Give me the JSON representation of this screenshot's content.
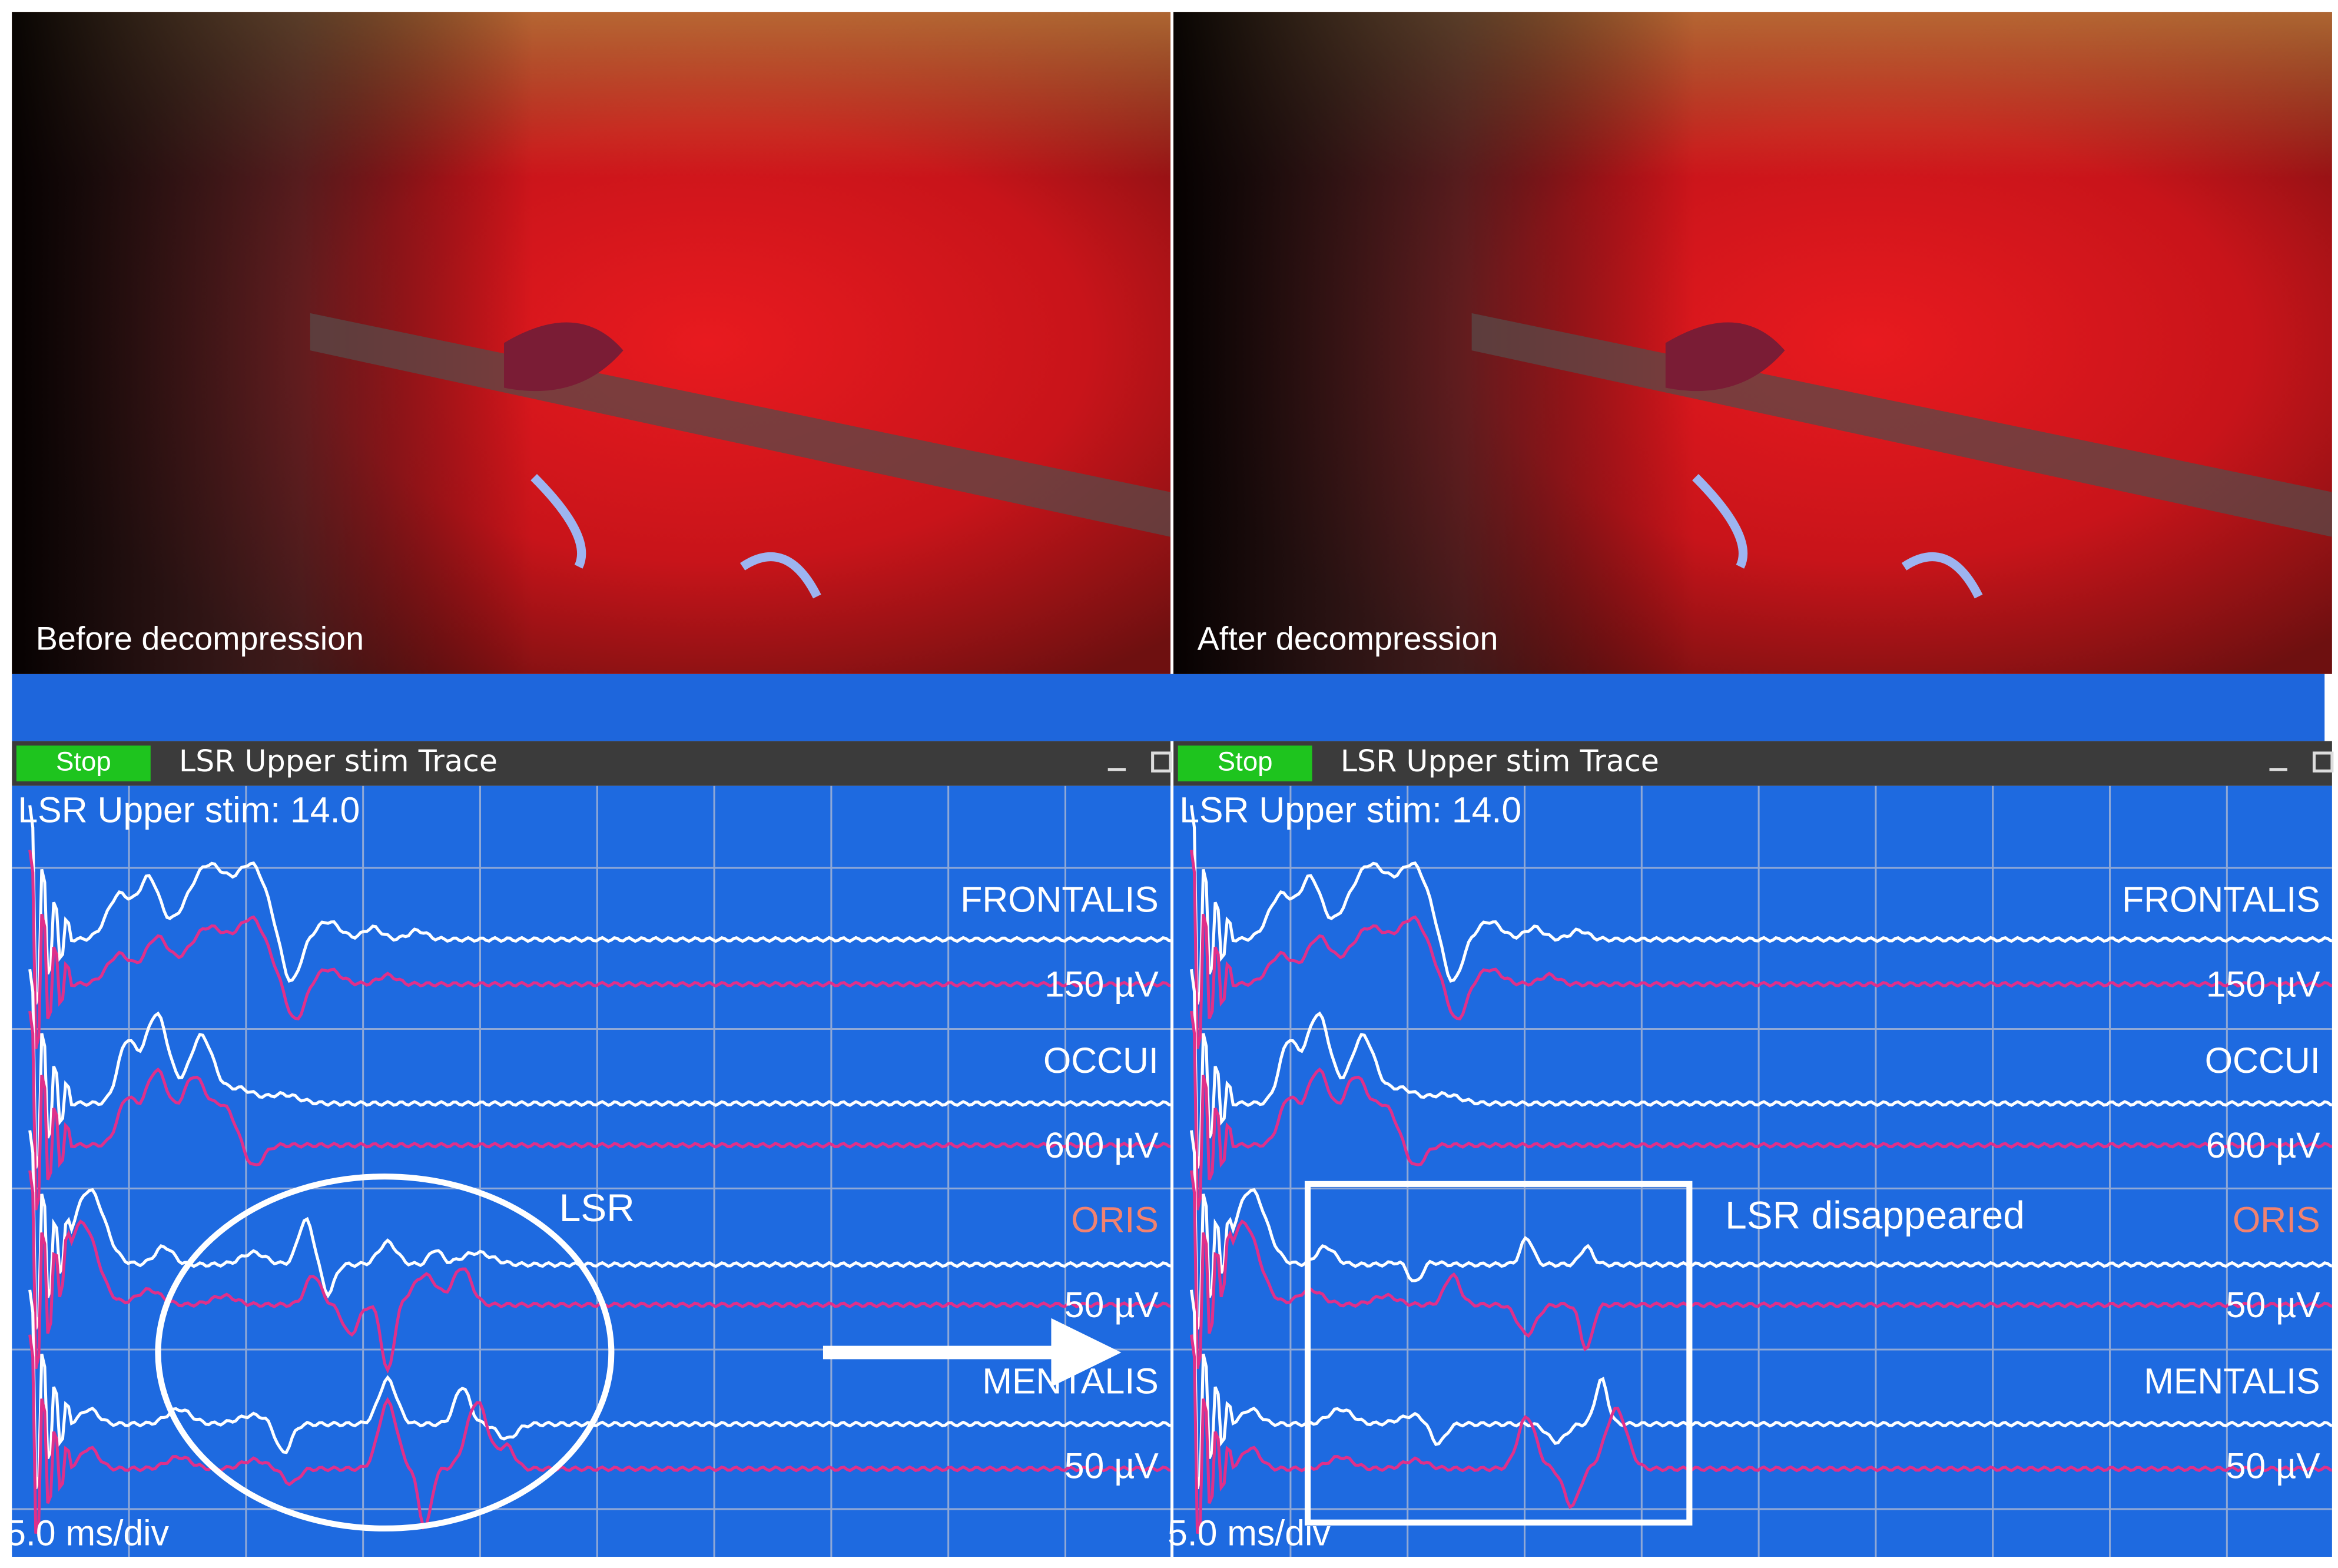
{
  "panels": [
    {
      "caption": "Before decompression",
      "button": "Stop",
      "window_title": "LSR Upper stim Trace",
      "header": "LSR Upper stim: 14.0",
      "channels": [
        {
          "name": "FRONTALIS",
          "scale": "150 µV"
        },
        {
          "name": "OCCUI",
          "scale": "600 µV"
        },
        {
          "name": "ORIS",
          "scale": "50 µV"
        },
        {
          "name": "MENTALIS",
          "scale": "50 µV"
        }
      ],
      "timebase": "5.0 ms/div"
    },
    {
      "caption": "After decompression",
      "button": "Stop",
      "window_title": "LSR Upper stim Trace",
      "header": "LSR Upper stim: 14.0",
      "channels": [
        {
          "name": "FRONTALIS",
          "scale": "150 µV"
        },
        {
          "name": "OCCUI",
          "scale": "600 µV"
        },
        {
          "name": "ORIS",
          "scale": "50 µV"
        },
        {
          "name": "MENTALIS",
          "scale": "50 µV"
        }
      ],
      "timebase": "5.0 ms/div"
    }
  ],
  "annotations": [
    {
      "label": "LSR"
    },
    {
      "label": "LSR disappeared"
    }
  ]
}
